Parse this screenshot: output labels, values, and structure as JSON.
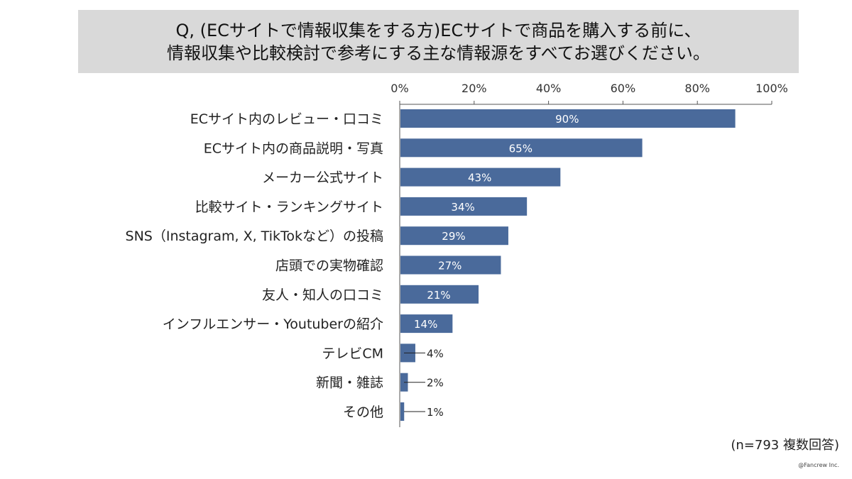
{
  "chart_data": {
    "type": "bar",
    "orientation": "horizontal",
    "title_lines": [
      "Q, (ECサイトで情報収集をする方)ECサイトで商品を購入する前に、",
      "情報収集や比較検討で参考にする主な情報源をすべてお選びください。"
    ],
    "categories": [
      "ECサイト内のレビュー・口コミ",
      "ECサイト内の商品説明・写真",
      "メーカー公式サイト",
      "比較サイト・ランキングサイト",
      "SNS（Instagram, X, TikTokなど）の投稿",
      "店頭での実物確認",
      "友人・知人の口コミ",
      "インフルエンサー・Youtuberの紹介",
      "テレビCM",
      "新聞・雑誌",
      "その他"
    ],
    "values": [
      90,
      65,
      43,
      34,
      29,
      27,
      21,
      14,
      4,
      2,
      1
    ],
    "data_labels": [
      "90%",
      "65%",
      "43%",
      "34%",
      "29%",
      "27%",
      "21%",
      "14%",
      "4%",
      "2%",
      "1%"
    ],
    "xlim": [
      0,
      100
    ],
    "x_ticks": [
      "0%",
      "20%",
      "40%",
      "60%",
      "80%",
      "100%"
    ],
    "axis_position": "top",
    "grid": false,
    "bar_color": "#4a6a9b",
    "note": "(n=793 複数回答)",
    "copyright": "@Fancrew Inc."
  }
}
